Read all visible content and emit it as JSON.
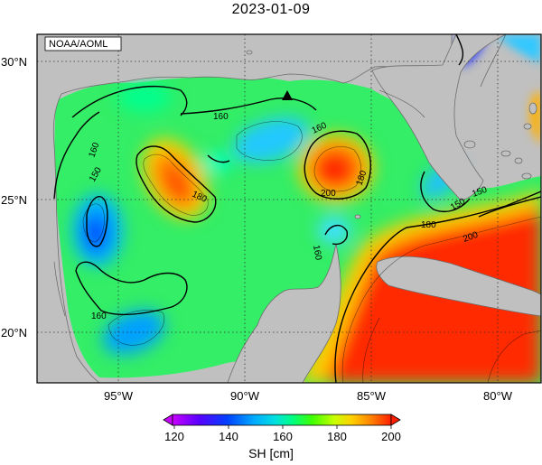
{
  "title": "2023-01-09",
  "credit": "NOAA/AOML",
  "lon_ticks": [
    "95°W",
    "90°W",
    "85°W",
    "80°W"
  ],
  "lat_ticks": [
    "30°N",
    "25°N",
    "20°N"
  ],
  "colorbar": {
    "label": "SH [cm]",
    "ticks": [
      "120",
      "140",
      "160",
      "180",
      "200"
    ],
    "colors": [
      "#c800ff",
      "#5a00ff",
      "#0040ff",
      "#00a8ff",
      "#00e0e0",
      "#00ff80",
      "#40ff00",
      "#c8ff00",
      "#ffd000",
      "#ff8000",
      "#ff1e00"
    ]
  },
  "contour_labels": [
    "160",
    "160",
    "150",
    "180",
    "160",
    "200",
    "180",
    "160",
    "150",
    "160",
    "180",
    "150",
    "200"
  ]
}
